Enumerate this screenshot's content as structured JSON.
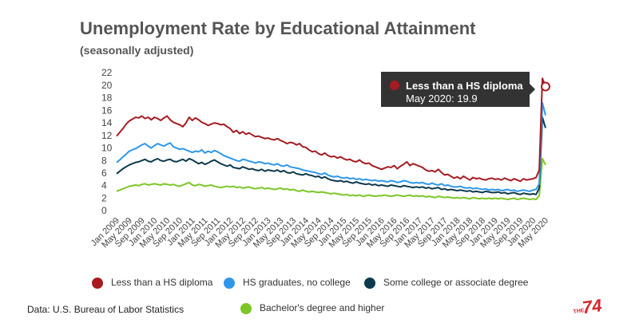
{
  "chart_data": {
    "type": "line",
    "title": "Unemployment Rate by Educational Attainment",
    "subtitle": "(seasonally adjusted)",
    "source": "Data: U.S. Bureau of Labor Statistics",
    "logo": {
      "prefix": "THE",
      "name": "74"
    },
    "legend": "bottom",
    "grid": false,
    "ylim": [
      0,
      22
    ],
    "yticks": [
      0,
      2,
      4,
      6,
      8,
      10,
      12,
      14,
      16,
      18,
      20,
      22
    ],
    "categories": [
      "Jan 2009",
      null,
      null,
      null,
      "May 2009",
      null,
      null,
      null,
      "Sep 2009",
      null,
      null,
      null,
      "Jan 2010",
      null,
      null,
      null,
      "May 2010",
      null,
      null,
      null,
      "Sep 2010",
      null,
      null,
      null,
      "Jan 2011",
      null,
      null,
      null,
      "May 2011",
      null,
      null,
      null,
      "Sep 2011",
      null,
      null,
      null,
      "Jan 2012",
      null,
      null,
      null,
      "May 2012",
      null,
      null,
      null,
      "Sep 2012",
      null,
      null,
      null,
      "Jan 2013",
      null,
      null,
      null,
      "May 2013",
      null,
      null,
      null,
      "Sep 2013",
      null,
      null,
      null,
      "Jan 2014",
      null,
      null,
      null,
      "May 2014",
      null,
      null,
      null,
      "Sep 2014",
      null,
      null,
      null,
      "Jan 2015",
      null,
      null,
      null,
      "May 2015",
      null,
      null,
      null,
      "Sep 2015",
      null,
      null,
      null,
      "Jan 2016",
      null,
      null,
      null,
      "May 2016",
      null,
      null,
      null,
      "Sep 2016",
      null,
      null,
      null,
      "Jan 2017",
      null,
      null,
      null,
      "May 2017",
      null,
      null,
      null,
      "Sep 2017",
      null,
      null,
      null,
      "Jan 2018",
      null,
      null,
      null,
      "May 2018",
      null,
      null,
      null,
      "Sep 2018",
      null,
      null,
      null,
      "Jan 2019",
      null,
      null,
      null,
      "May 2019",
      null,
      null,
      null,
      "Sep 2019",
      null,
      null,
      null,
      "Jan 2020",
      null,
      null,
      null,
      "May 2020"
    ],
    "series": [
      {
        "name": "Less than a HS diploma",
        "color": "#a51c22",
        "values": [
          12.0,
          12.6,
          13.2,
          13.9,
          14.4,
          14.7,
          15.0,
          14.9,
          15.2,
          14.8,
          15.0,
          14.6,
          15.0,
          14.8,
          14.5,
          14.9,
          15.2,
          14.6,
          14.2,
          14.0,
          13.8,
          13.5,
          14.1,
          15.0,
          14.5,
          14.9,
          14.6,
          14.2,
          14.0,
          13.7,
          13.9,
          14.1,
          14.0,
          13.8,
          13.9,
          13.5,
          13.2,
          12.6,
          12.9,
          12.4,
          12.7,
          12.3,
          12.5,
          12.2,
          11.9,
          12.0,
          11.8,
          11.6,
          11.7,
          11.5,
          11.4,
          11.6,
          11.3,
          11.1,
          10.8,
          11.0,
          10.9,
          10.6,
          10.8,
          10.3,
          10.2,
          9.8,
          9.5,
          9.6,
          9.2,
          9.0,
          9.3,
          8.9,
          8.7,
          8.8,
          8.5,
          8.7,
          8.4,
          8.2,
          8.3,
          8.0,
          7.9,
          8.2,
          7.8,
          7.6,
          7.7,
          7.3,
          7.1,
          6.9,
          6.7,
          6.9,
          7.1,
          7.0,
          7.3,
          6.8,
          7.2,
          7.5,
          7.9,
          7.3,
          7.6,
          7.4,
          7.2,
          7.0,
          6.6,
          6.4,
          6.5,
          6.3,
          6.7,
          6.2,
          5.8,
          5.9,
          5.6,
          5.3,
          5.5,
          5.2,
          5.6,
          5.3,
          5.0,
          5.4,
          5.2,
          5.3,
          5.1,
          5.0,
          5.2,
          5.3,
          5.1,
          5.2,
          5.0,
          5.3,
          5.1,
          4.9,
          5.2,
          5.0,
          4.8,
          5.2,
          5.0,
          5.1,
          5.2,
          5.4,
          6.6,
          21.2,
          19.9
        ]
      },
      {
        "name": "HS graduates, no college",
        "color": "#2e97ea",
        "values": [
          7.8,
          8.2,
          8.7,
          9.1,
          9.6,
          9.8,
          10.0,
          10.3,
          10.6,
          10.8,
          10.4,
          10.1,
          10.5,
          10.8,
          10.6,
          10.4,
          10.7,
          10.9,
          10.3,
          10.1,
          9.9,
          10.0,
          9.8,
          9.6,
          9.4,
          9.6,
          9.5,
          9.8,
          9.3,
          9.6,
          9.4,
          9.7,
          9.5,
          9.2,
          8.9,
          8.7,
          8.5,
          8.3,
          8.1,
          8.0,
          8.3,
          8.2,
          8.0,
          7.9,
          7.7,
          7.9,
          7.8,
          7.6,
          7.7,
          7.5,
          7.4,
          7.6,
          7.3,
          7.2,
          7.4,
          7.1,
          7.0,
          6.9,
          6.8,
          6.6,
          6.5,
          6.4,
          6.3,
          6.2,
          6.0,
          5.9,
          6.1,
          5.8,
          5.6,
          5.5,
          5.6,
          5.4,
          5.3,
          5.4,
          5.2,
          5.3,
          5.1,
          5.2,
          5.0,
          5.1,
          5.0,
          4.9,
          5.0,
          4.8,
          4.9,
          4.8,
          4.7,
          4.9,
          4.8,
          4.6,
          4.7,
          4.9,
          4.8,
          4.6,
          4.5,
          4.6,
          4.5,
          4.6,
          4.4,
          4.3,
          4.5,
          4.3,
          4.2,
          4.4,
          4.1,
          4.2,
          4.0,
          3.9,
          3.9,
          4.0,
          3.8,
          3.7,
          3.8,
          3.6,
          3.7,
          3.6,
          3.5,
          3.6,
          3.4,
          3.5,
          3.4,
          3.5,
          3.3,
          3.4,
          3.5,
          3.3,
          3.4,
          3.2,
          3.3,
          3.4,
          3.3,
          3.2,
          3.4,
          3.5,
          4.4,
          17.3,
          15.3
        ]
      },
      {
        "name": "Some college or associate degree",
        "color": "#0d3a4d",
        "values": [
          6.0,
          6.4,
          6.8,
          7.1,
          7.4,
          7.6,
          7.8,
          7.9,
          8.1,
          8.3,
          8.0,
          7.9,
          8.2,
          8.4,
          8.1,
          8.0,
          8.2,
          8.3,
          8.0,
          7.9,
          8.1,
          8.3,
          8.0,
          8.4,
          8.2,
          7.9,
          7.6,
          7.8,
          7.5,
          7.7,
          8.0,
          8.2,
          7.9,
          7.6,
          7.4,
          7.2,
          7.4,
          7.0,
          6.9,
          6.8,
          7.1,
          6.9,
          6.7,
          6.8,
          6.6,
          6.5,
          6.7,
          6.4,
          6.6,
          6.5,
          6.4,
          6.6,
          6.3,
          6.5,
          6.2,
          6.1,
          6.3,
          6.0,
          5.9,
          5.8,
          6.0,
          5.8,
          5.7,
          5.5,
          5.6,
          5.3,
          5.5,
          5.2,
          5.0,
          4.9,
          4.8,
          4.9,
          4.7,
          4.8,
          4.6,
          4.5,
          4.7,
          4.5,
          4.4,
          4.3,
          4.4,
          4.2,
          4.3,
          4.1,
          4.2,
          4.1,
          4.0,
          4.2,
          4.1,
          4.0,
          3.9,
          4.1,
          4.0,
          3.9,
          3.8,
          3.9,
          3.8,
          3.9,
          3.7,
          3.8,
          3.6,
          3.7,
          3.8,
          3.5,
          3.6,
          3.4,
          3.5,
          3.4,
          3.3,
          3.4,
          3.3,
          3.2,
          3.3,
          3.1,
          3.2,
          3.1,
          3.0,
          3.2,
          3.1,
          3.0,
          3.0,
          3.1,
          2.9,
          3.0,
          2.8,
          2.9,
          3.0,
          2.8,
          2.7,
          2.9,
          2.8,
          2.7,
          2.8,
          2.7,
          3.7,
          15.0,
          13.3
        ]
      },
      {
        "name": "Bachelor's degree and higher",
        "color": "#7cc628",
        "values": [
          3.2,
          3.4,
          3.6,
          3.8,
          4.0,
          4.1,
          4.2,
          4.1,
          4.3,
          4.4,
          4.2,
          4.3,
          4.4,
          4.3,
          4.2,
          4.4,
          4.3,
          4.2,
          4.3,
          4.1,
          4.0,
          4.2,
          4.4,
          4.6,
          4.2,
          4.1,
          4.3,
          4.2,
          4.0,
          4.1,
          4.2,
          4.0,
          3.9,
          3.8,
          3.9,
          4.0,
          3.9,
          4.0,
          3.8,
          3.9,
          3.7,
          3.8,
          3.9,
          3.7,
          3.6,
          3.7,
          3.8,
          3.6,
          3.7,
          3.6,
          3.5,
          3.6,
          3.7,
          3.5,
          3.6,
          3.4,
          3.5,
          3.3,
          3.2,
          3.4,
          3.2,
          3.1,
          3.2,
          3.1,
          3.0,
          3.1,
          3.0,
          2.9,
          2.8,
          2.9,
          2.8,
          2.7,
          2.6,
          2.7,
          2.5,
          2.6,
          2.5,
          2.6,
          2.4,
          2.5,
          2.6,
          2.5,
          2.4,
          2.5,
          2.5,
          2.6,
          2.5,
          2.4,
          2.5,
          2.6,
          2.5,
          2.4,
          2.5,
          2.6,
          2.4,
          2.5,
          2.4,
          2.5,
          2.3,
          2.4,
          2.3,
          2.2,
          2.4,
          2.3,
          2.2,
          2.3,
          2.2,
          2.1,
          2.2,
          2.1,
          2.2,
          2.1,
          2.0,
          2.2,
          2.1,
          2.0,
          2.1,
          2.0,
          2.1,
          2.0,
          2.1,
          2.0,
          2.1,
          2.0,
          1.9,
          2.0,
          2.1,
          1.9,
          2.0,
          2.1,
          2.0,
          1.9,
          2.0,
          1.9,
          2.5,
          8.4,
          7.4
        ]
      }
    ]
  }
}
